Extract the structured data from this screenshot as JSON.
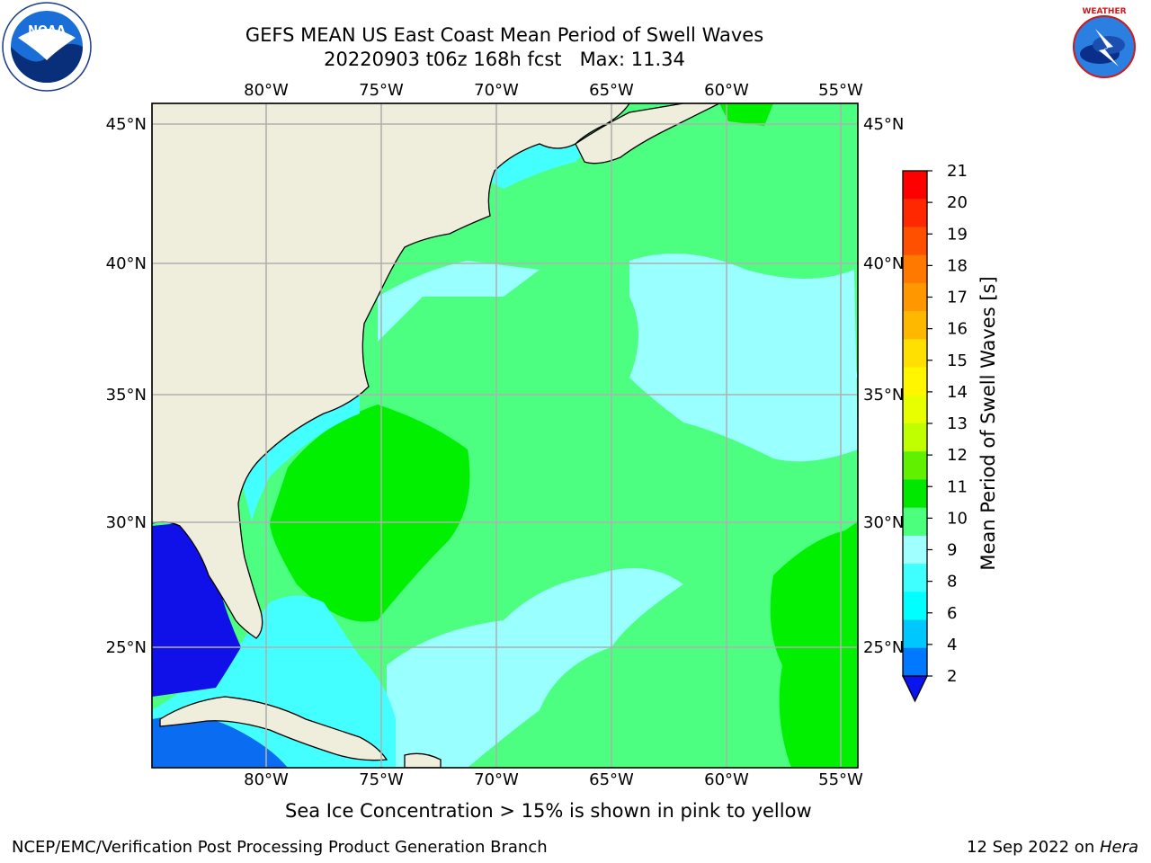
{
  "header": {
    "title_line1": "GEFS MEAN US East Coast Mean Period of Swell Waves",
    "title_line2": "20220903 t06z 168h fcst   Max: 11.34"
  },
  "logos": {
    "left": "noaa-logo",
    "right": "nws-logo",
    "right_text": "NATIONAL WEATHER SERVICE"
  },
  "map": {
    "lon_labels": [
      "80°W",
      "75°W",
      "70°W",
      "65°W",
      "60°W",
      "55°W"
    ],
    "lat_labels": [
      "45°N",
      "40°N",
      "35°N",
      "30°N",
      "25°N"
    ],
    "colors": {
      "land": "#efeedd",
      "grid": "#b0b0b0",
      "sea_light_cyan": "#99ffff",
      "sea_green": "#4dff80",
      "sea_bright_green": "#00f000",
      "sea_cyan": "#44ffff",
      "gulf_blue": "#1010e8",
      "caribbean_blue": "#0a6cf0"
    }
  },
  "colorbar": {
    "label": "Mean Period of Swell Waves [s]",
    "ticks": [
      "21",
      "20",
      "19",
      "18",
      "17",
      "16",
      "15",
      "14",
      "13",
      "12",
      "11",
      "10",
      "9",
      "8",
      "6",
      "4",
      "2"
    ],
    "colors": [
      "#ff0000",
      "#ff2800",
      "#ff5000",
      "#ff7800",
      "#ff9800",
      "#ffb800",
      "#ffe000",
      "#fff600",
      "#e8ff00",
      "#c0ff00",
      "#60f000",
      "#00e800",
      "#4cff7c",
      "#a0ffff",
      "#40ffff",
      "#00ffff",
      "#00c8ff",
      "#0078ff"
    ],
    "extend_color": "#0a14f0"
  },
  "footer": {
    "ice_note": "Sea Ice Concentration > 15% is shown in pink to yellow",
    "credit": "NCEP/EMC/Verification Post Processing Product Generation Branch",
    "date": "12 Sep 2022 on ",
    "date_host": "Hera"
  }
}
